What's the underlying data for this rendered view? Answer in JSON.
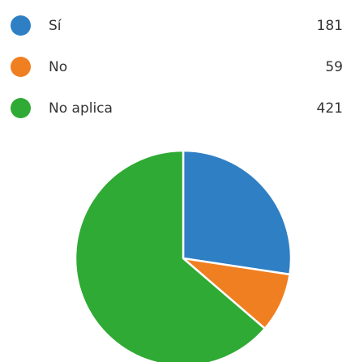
{
  "chart_data": {
    "type": "pie",
    "categories": [
      "Sí",
      "No",
      "No aplica"
    ],
    "values": [
      181,
      59,
      421
    ],
    "colors": [
      "#2f7fc4",
      "#f07f22",
      "#2faa34"
    ],
    "legend_placement": "top",
    "start_angle_deg": 0,
    "direction": "clockwise"
  }
}
